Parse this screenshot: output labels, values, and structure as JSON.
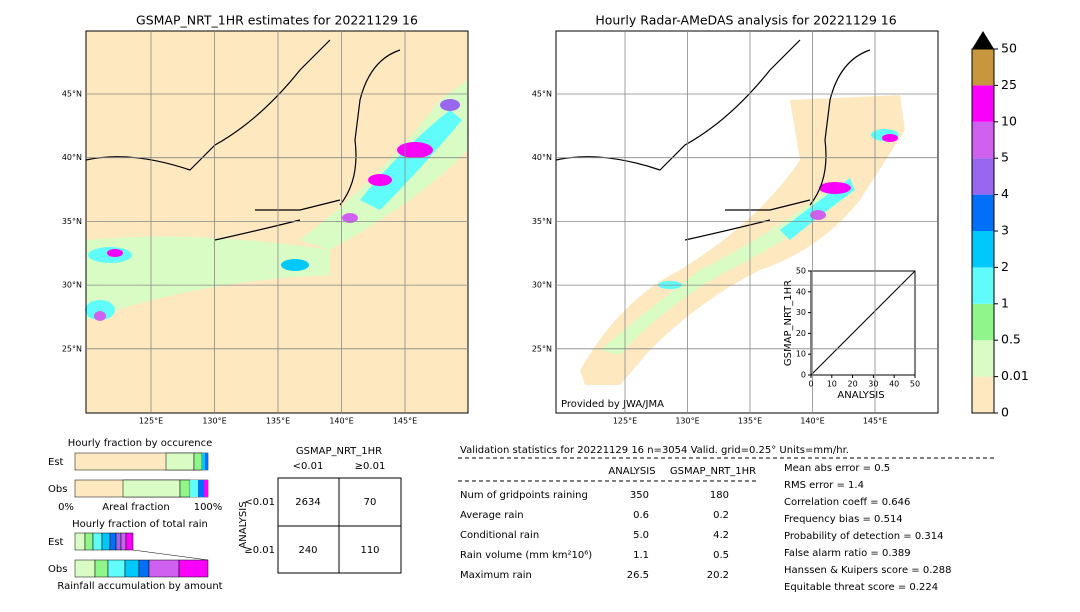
{
  "left_map": {
    "title": "GSMAP_NRT_1HR estimates for 20221129 16",
    "xticks": [
      "125°E",
      "130°E",
      "135°E",
      "140°E",
      "145°E"
    ],
    "yticks": [
      "45°N",
      "40°N",
      "35°N",
      "30°N",
      "25°N"
    ]
  },
  "right_map": {
    "title": "Hourly Radar-AMeDAS analysis for 20221129 16",
    "xticks": [
      "125°E",
      "130°E",
      "135°E",
      "140°E",
      "145°E"
    ],
    "yticks": [
      "45°N",
      "40°N",
      "35°N",
      "30°N",
      "25°N"
    ],
    "credit": "Provided by JWA/JMA"
  },
  "scatter": {
    "xlabel": "ANALYSIS",
    "ylabel": "GSMAP_NRT_1HR",
    "ticks": [
      0,
      10,
      20,
      30,
      40,
      50
    ]
  },
  "colorbar": {
    "ticks": [
      0,
      0.01,
      0.5,
      1,
      2,
      3,
      4,
      5,
      10,
      25,
      50
    ],
    "colors": [
      "#fde8c0",
      "#d9fcc4",
      "#90f58a",
      "#60fcfc",
      "#00c8fa",
      "#0070f8",
      "#9966f0",
      "#d060f0",
      "#fa00fa",
      "#c8963c"
    ]
  },
  "occurrence": {
    "title": "Hourly fraction by occurence",
    "rows": [
      "Est",
      "Obs"
    ],
    "axis": [
      "0%",
      "Areal fraction",
      "100%"
    ]
  },
  "total": {
    "title": "Hourly fraction of total rain",
    "rows": [
      "Est",
      "Obs"
    ],
    "footer": "Rainfall accumulation by amount"
  },
  "contingency": {
    "title": "GSMAP_NRT_1HR",
    "cols": [
      "<0.01",
      "≥0.01"
    ],
    "side": "ANALYSIS",
    "rows": [
      {
        "label": "<0.01",
        "cells": [
          2634,
          70
        ]
      },
      {
        "label": "≥0.01",
        "cells": [
          240,
          110
        ]
      }
    ]
  },
  "validation": {
    "header": "Validation statistics for 20221129 16  n=3054 Valid. grid=0.25° Units=mm/hr.",
    "columns": [
      "ANALYSIS",
      "GSMAP_NRT_1HR"
    ],
    "rows": [
      {
        "label": "Num of gridpoints raining",
        "values": [
          "350",
          "180"
        ]
      },
      {
        "label": "Average rain",
        "values": [
          "0.6",
          "0.2"
        ]
      },
      {
        "label": "Conditional rain",
        "values": [
          "5.0",
          "4.2"
        ]
      },
      {
        "label": "Rain volume (mm km²10⁶)",
        "values": [
          "1.1",
          "0.5"
        ]
      },
      {
        "label": "Maximum rain",
        "values": [
          "26.5",
          "20.2"
        ]
      }
    ]
  },
  "scores": [
    "Mean abs error =    0.5",
    "RMS error =    1.4",
    "Correlation coeff =  0.646",
    "Frequency bias =  0.514",
    "Probability of detection =  0.314",
    "False alarm ratio =  0.389",
    "Hanssen & Kuipers score =  0.288",
    "Equitable threat score =  0.224"
  ]
}
